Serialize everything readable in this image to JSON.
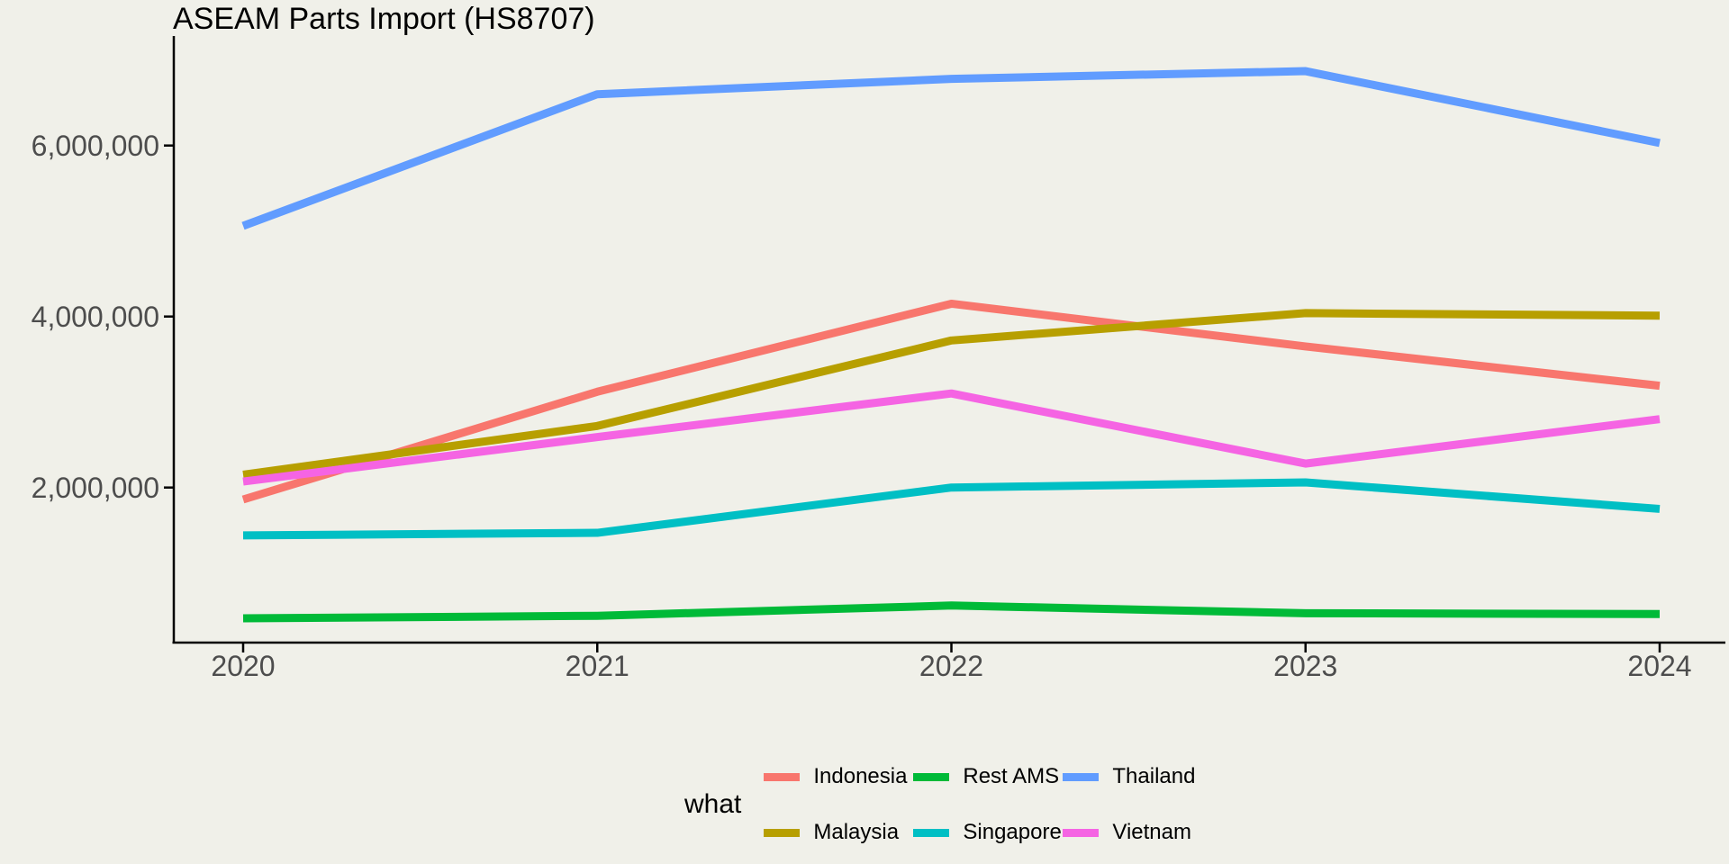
{
  "title": "ASEAM Parts Import (HS8707)",
  "style": {
    "background": "#F0F0E9",
    "axis_line_color": "#000000",
    "tick_label_color": "#4D4D4D",
    "title_color": "#000000"
  },
  "chart_data": {
    "type": "line",
    "title": "ASEAM Parts Import (HS8707)",
    "xlabel": "",
    "ylabel": "",
    "x": [
      2020,
      2021,
      2022,
      2023,
      2024
    ],
    "x_tick_labels": [
      "2020",
      "2021",
      "2022",
      "2023",
      "2024"
    ],
    "y_ticks": [
      2000000,
      4000000,
      6000000
    ],
    "y_tick_labels": [
      "2,000,000",
      "4,000,000",
      "6,000,000"
    ],
    "ylim": [
      186000,
      7280000
    ],
    "grid": "off",
    "series": [
      {
        "name": "Indonesia",
        "color": "#F8766D",
        "values": [
          1860000,
          3120000,
          4150000,
          3650000,
          3190000
        ]
      },
      {
        "name": "Malaysia",
        "color": "#B79F00",
        "values": [
          2150000,
          2720000,
          3720000,
          4040000,
          4010000
        ]
      },
      {
        "name": "Rest AMS",
        "color": "#00BA38",
        "values": [
          470000,
          500000,
          620000,
          530000,
          520000
        ]
      },
      {
        "name": "Singapore",
        "color": "#00BFC4",
        "values": [
          1440000,
          1470000,
          2000000,
          2060000,
          1750000
        ]
      },
      {
        "name": "Thailand",
        "color": "#619CFF",
        "values": [
          5060000,
          6600000,
          6780000,
          6870000,
          6030000
        ]
      },
      {
        "name": "Vietnam",
        "color": "#F564E3",
        "values": [
          2070000,
          2590000,
          3100000,
          2280000,
          2800000
        ]
      }
    ],
    "legend": {
      "title": "what",
      "position": "bottom",
      "rows": [
        [
          "Indonesia",
          "Rest AMS",
          "Thailand"
        ],
        [
          "Malaysia",
          "Singapore",
          "Vietnam"
        ]
      ]
    }
  }
}
